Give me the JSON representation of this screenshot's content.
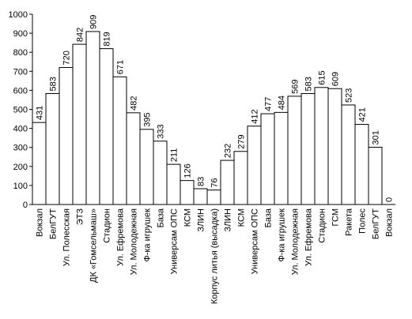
{
  "chart_data": {
    "type": "bar",
    "title": "",
    "xlabel": "",
    "ylabel": "",
    "ylim": [
      0,
      1000
    ],
    "yticks": [
      "0",
      "100",
      "200",
      "300",
      "400",
      "500",
      "600",
      "700",
      "800",
      "900",
      "1000"
    ],
    "grid": false,
    "legend": "none",
    "bar_fill": "#ffffff",
    "bar_stroke": "#000000",
    "categories": [
      "Вокзал",
      "БелГУТ",
      "Ул. Полесская",
      "ЭТЗ",
      "ДК «Гомсельмаш»",
      "Стадион",
      "Ул. Ефремова",
      "Ул. Молодежная",
      "Ф-ка игрушек",
      "База",
      "Универсам ОПС",
      "КСМ",
      "ЗЛИН",
      "Корпус литья (высадка)",
      "ЗЛИН",
      "КСМ",
      "Универсам ОПС",
      "База",
      "Ф-ка игрушек",
      "Ул. Молодежная",
      "Ул. Ефремова",
      "Стадион",
      "ГСМ",
      "Ракета",
      "Полес",
      "БелГУТ",
      "Вокзал"
    ],
    "values": [
      431,
      583,
      720,
      842,
      909,
      819,
      671,
      482,
      395,
      333,
      211,
      126,
      83,
      76,
      232,
      279,
      412,
      477,
      484,
      569,
      583,
      615,
      609,
      523,
      421,
      301,
      0
    ],
    "value_labels": [
      "431",
      "583",
      "720",
      "842",
      "909",
      "819",
      "671",
      "482",
      "395",
      "333",
      "211",
      "126",
      "83",
      "76",
      "232",
      "279",
      "412",
      "477",
      "484",
      "569",
      "583",
      "615",
      "609",
      "523",
      "421",
      "301",
      "0"
    ]
  }
}
